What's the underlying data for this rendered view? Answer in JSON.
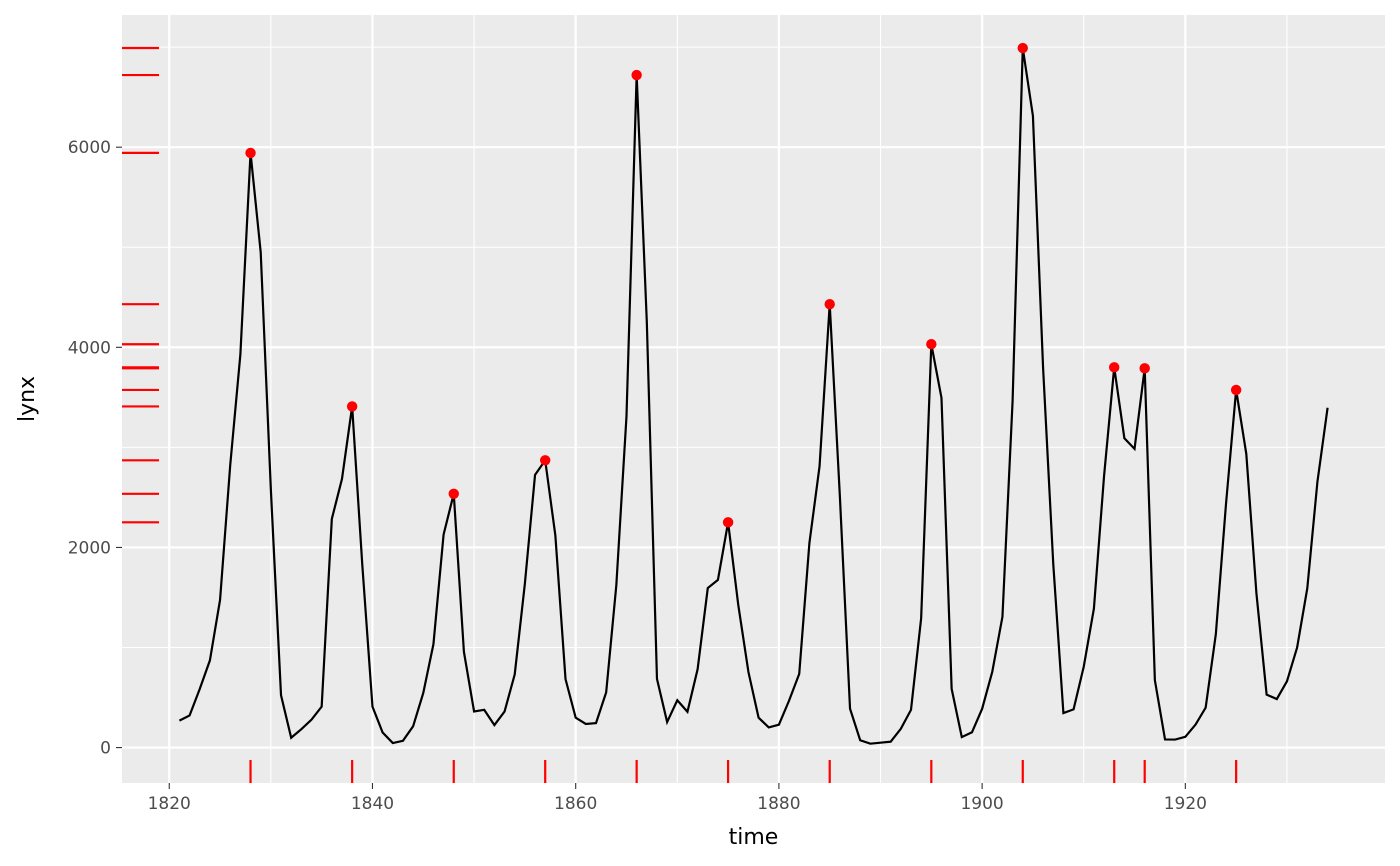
{
  "colors": {
    "panel_background": "#ebebeb",
    "grid_major": "#ffffff",
    "line": "#000000",
    "peak_points": "#ff0000",
    "rug": "#ff0000",
    "tick_text": "#4d4d4d"
  },
  "chart_data": {
    "type": "line",
    "xlabel": "time",
    "ylabel": "lynx",
    "xlim": [
      1815.35,
      1939.65
    ],
    "ylim": [
      -354,
      7321
    ],
    "x_ticks": [
      1820,
      1840,
      1860,
      1880,
      1900,
      1920
    ],
    "x_tick_labels": [
      "1820",
      "1840",
      "1860",
      "1880",
      "1900",
      "1920"
    ],
    "y_ticks": [
      0,
      2000,
      4000,
      6000
    ],
    "y_tick_labels": [
      "0",
      "2000",
      "4000",
      "6000"
    ],
    "grid": true,
    "legend": "none",
    "x": [
      1821,
      1822,
      1823,
      1824,
      1825,
      1826,
      1827,
      1828,
      1829,
      1830,
      1831,
      1832,
      1833,
      1834,
      1835,
      1836,
      1837,
      1838,
      1839,
      1840,
      1841,
      1842,
      1843,
      1844,
      1845,
      1846,
      1847,
      1848,
      1849,
      1850,
      1851,
      1852,
      1853,
      1854,
      1855,
      1856,
      1857,
      1858,
      1859,
      1860,
      1861,
      1862,
      1863,
      1864,
      1865,
      1866,
      1867,
      1868,
      1869,
      1870,
      1871,
      1872,
      1873,
      1874,
      1875,
      1876,
      1877,
      1878,
      1879,
      1880,
      1881,
      1882,
      1883,
      1884,
      1885,
      1886,
      1887,
      1888,
      1889,
      1890,
      1891,
      1892,
      1893,
      1894,
      1895,
      1896,
      1897,
      1898,
      1899,
      1900,
      1901,
      1902,
      1903,
      1904,
      1905,
      1906,
      1907,
      1908,
      1909,
      1910,
      1911,
      1912,
      1913,
      1914,
      1915,
      1916,
      1917,
      1918,
      1919,
      1920,
      1921,
      1922,
      1923,
      1924,
      1925,
      1926,
      1927,
      1928,
      1929,
      1930,
      1931,
      1932,
      1933,
      1934
    ],
    "series": [
      {
        "values": [
          269,
          321,
          585,
          871,
          1475,
          2821,
          3928,
          5943,
          4950,
          2577,
          523,
          98,
          184,
          279,
          409,
          2285,
          2685,
          3409,
          1824,
          409,
          151,
          45,
          68,
          213,
          546,
          1033,
          2129,
          2536,
          957,
          361,
          377,
          225,
          360,
          731,
          1638,
          2725,
          2871,
          2119,
          684,
          299,
          236,
          245,
          552,
          1623,
          3311,
          6721,
          4254,
          687,
          255,
          473,
          358,
          784,
          1594,
          1676,
          2251,
          1426,
          756,
          299,
          201,
          229,
          469,
          736,
          2042,
          2811,
          4431,
          2511,
          389,
          73,
          39,
          49,
          59,
          188,
          377,
          1292,
          4031,
          3495,
          587,
          105,
          153,
          387,
          758,
          1307,
          3465,
          6991,
          6313,
          3794,
          1836,
          345,
          382,
          808,
          1388,
          2713,
          3800,
          3091,
          2985,
          3790,
          674,
          81,
          80,
          108,
          229,
          399,
          1132,
          2432,
          3574,
          2935,
          1537,
          529,
          485,
          662,
          1000,
          1590,
          2657,
          3396
        ]
      }
    ],
    "peaks": {
      "x": [
        1828,
        1838,
        1848,
        1857,
        1866,
        1875,
        1885,
        1895,
        1904,
        1913,
        1916,
        1925
      ],
      "y": [
        5943,
        3409,
        2536,
        2871,
        6721,
        2251,
        4431,
        4031,
        6991,
        3800,
        3790,
        3574
      ]
    },
    "rug_x": [
      1828,
      1838,
      1848,
      1857,
      1866,
      1875,
      1885,
      1895,
      1904,
      1913,
      1916,
      1925
    ],
    "rug_y": [
      5943,
      3409,
      2536,
      2871,
      6721,
      2251,
      4431,
      4031,
      6991,
      3800,
      3790,
      3574
    ]
  }
}
